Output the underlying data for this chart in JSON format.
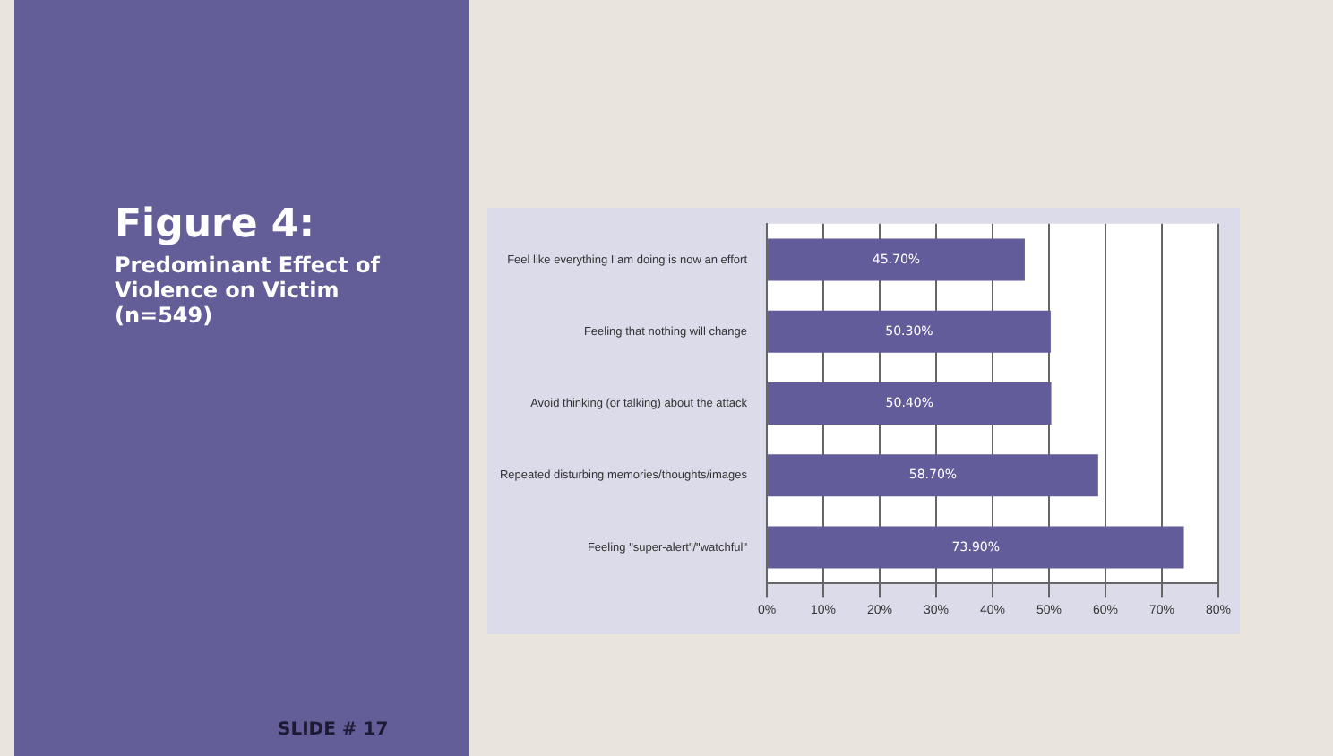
{
  "chart_data": {
    "type": "bar",
    "orientation": "horizontal",
    "title": "Figure 4:",
    "subtitle": "Predominant Effect of Violence on Victim (n=549)",
    "categories": [
      "Feel like everything I am doing is now an effort",
      "Feeling that nothing will change",
      "Avoid thinking (or talking) about the attack",
      "Repeated disturbing memories/thoughts/images",
      "Feeling \"super-alert\"/\"watchful\""
    ],
    "values": [
      45.7,
      50.3,
      50.4,
      58.7,
      73.9
    ],
    "value_labels": [
      "45.70%",
      "50.30%",
      "50.40%",
      "58.70%",
      "73.90%"
    ],
    "color": "#625c9a",
    "xlim": [
      0,
      80
    ],
    "xticks": [
      {
        "value": 0,
        "label": "0%"
      },
      {
        "value": 10,
        "label": "10%"
      },
      {
        "value": 20,
        "label": "20%"
      },
      {
        "value": 30,
        "label": "30%"
      },
      {
        "value": 40,
        "label": "40%"
      },
      {
        "value": 50,
        "label": "50%"
      },
      {
        "value": 60,
        "label": "60%"
      },
      {
        "value": 70,
        "label": "70%"
      },
      {
        "value": 80,
        "label": "80%"
      }
    ],
    "grid": "x",
    "legend": false,
    "annotations": [
      "SLIDE # 17"
    ]
  }
}
